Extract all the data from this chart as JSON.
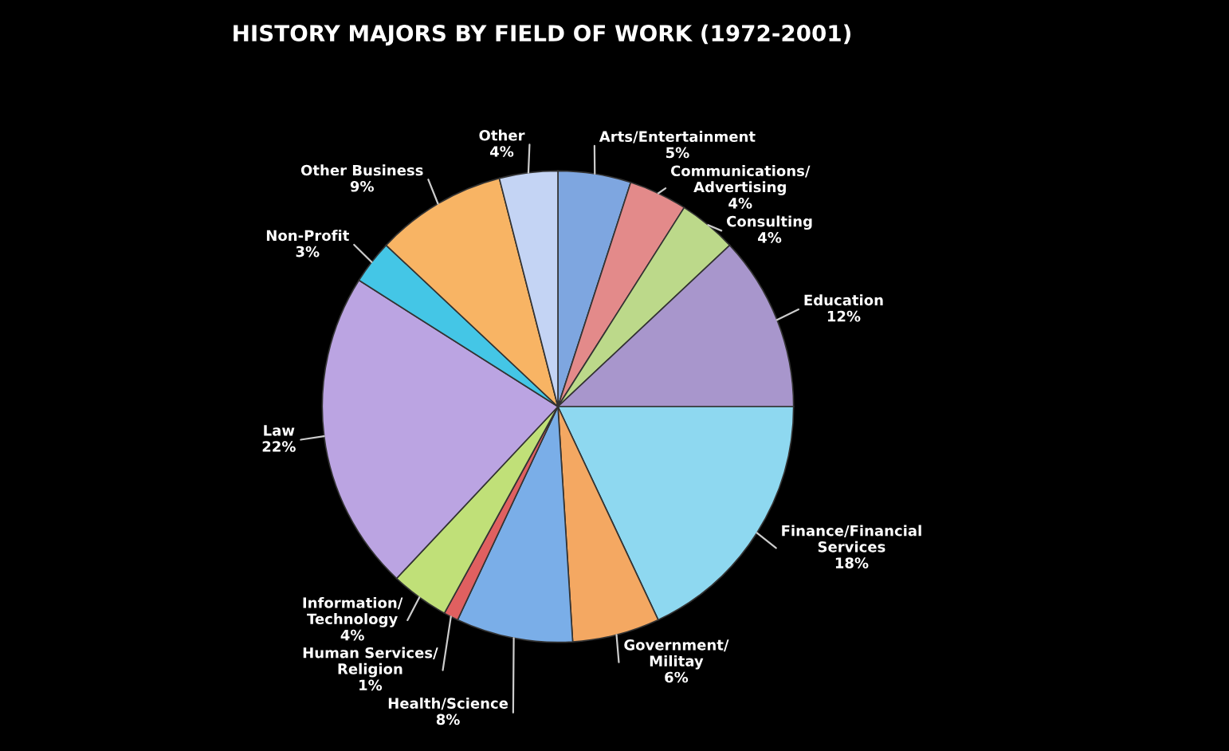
{
  "chart_data": {
    "type": "pie",
    "title": "HISTORY MAJORS BY FIELD OF WORK (1972-2001)",
    "categories": [
      "Arts/Entertainment",
      "Communications/\nAdvertising",
      "Consulting",
      "Education",
      "Finance/Financial\nServices",
      "Government/\nMilitay",
      "Health/Science",
      "Human Services/\nReligion",
      "Information/\nTechnology",
      "Law",
      "Non-Profit",
      "Other Business",
      "Other"
    ],
    "values": [
      5,
      4,
      4,
      12,
      18,
      6,
      8,
      1,
      4,
      22,
      3,
      9,
      4
    ],
    "colors": [
      "#7ea6e0",
      "#e38a8a",
      "#bcd98a",
      "#a896cc",
      "#8ed8f0",
      "#f4a862",
      "#7aaee8",
      "#e06060",
      "#c0e078",
      "#bba4e2",
      "#44c6e6",
      "#f8b464",
      "#c4d4f4"
    ],
    "value_labels": [
      "5%",
      "4%",
      "4%",
      "12%",
      "18%",
      "6%",
      "8%",
      "1%",
      "4%",
      "22%",
      "3%",
      "9%",
      "4%"
    ]
  }
}
